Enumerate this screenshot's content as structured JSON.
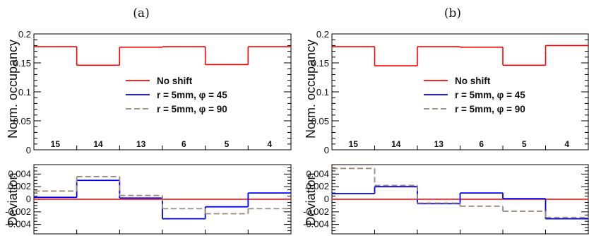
{
  "chart_data": [
    {
      "panel_label": "(a)",
      "type": "line",
      "style": "step",
      "categories": [
        "15",
        "14",
        "13",
        "6",
        "5",
        "4"
      ],
      "occupancy": {
        "ylabel": "Norm. occupancy",
        "ylim": [
          0,
          0.2
        ],
        "yticks": [
          0,
          0.05,
          0.1,
          0.15,
          0.2
        ],
        "ytick_labels": [
          "0",
          "0.05",
          "0.1",
          "0.15",
          "0.2"
        ],
        "series": [
          {
            "name": "No shift",
            "color": "#ff0000",
            "dash": "solid",
            "values": [
              0.178,
              0.146,
              0.177,
              0.178,
              0.147,
              0.178
            ]
          }
        ]
      },
      "deviation": {
        "ylabel": "Deviation",
        "ylim": [
          -0.0055,
          0.0055
        ],
        "yticks": [
          -0.004,
          -0.002,
          0,
          0.002,
          0.004
        ],
        "ytick_labels": [
          "-0.004",
          "-0.002",
          "0",
          "0.002",
          "0.004"
        ],
        "reference_line": 0,
        "series": [
          {
            "name": "r = 5mm, φ = 45",
            "color": "#0000ee",
            "dash": "solid",
            "values": [
              0.0003,
              0.003,
              0.0002,
              -0.0031,
              -0.0012,
              0.001
            ]
          },
          {
            "name": "r = 5mm, φ = 90",
            "color": "#9a8878",
            "dash": "dashed",
            "values": [
              0.0013,
              0.0036,
              0.0006,
              -0.0015,
              -0.0023,
              -0.0015
            ]
          }
        ]
      },
      "legend": {
        "placement": "center",
        "entries": [
          {
            "label": "No shift",
            "color": "#ff0000",
            "dash": "solid"
          },
          {
            "label": "r = 5mm, φ = 45",
            "color": "#0000ee",
            "dash": "solid"
          },
          {
            "label": "r = 5mm, φ = 90",
            "color": "#9a8878",
            "dash": "dashed"
          }
        ]
      }
    },
    {
      "panel_label": "(b)",
      "type": "line",
      "style": "step",
      "categories": [
        "15",
        "14",
        "13",
        "6",
        "5",
        "4"
      ],
      "occupancy": {
        "ylabel": "Norm. occupancy",
        "ylim": [
          0,
          0.2
        ],
        "yticks": [
          0,
          0.05,
          0.1,
          0.15,
          0.2
        ],
        "ytick_labels": [
          "0",
          "0.05",
          "0.1",
          "0.15",
          "0.2"
        ],
        "series": [
          {
            "name": "No shift",
            "color": "#ff0000",
            "dash": "solid",
            "values": [
              0.178,
              0.145,
              0.178,
              0.177,
              0.146,
              0.18
            ]
          }
        ]
      },
      "deviation": {
        "ylabel": "Deviation",
        "ylim": [
          -0.0055,
          0.0055
        ],
        "yticks": [
          -0.004,
          -0.002,
          0,
          0.002,
          0.004
        ],
        "ytick_labels": [
          "-0.004",
          "-0.002",
          "0",
          "0.002",
          "0.004"
        ],
        "reference_line": 0,
        "series": [
          {
            "name": "r = 5mm, φ = 45",
            "color": "#0000ee",
            "dash": "solid",
            "values": [
              0.0009,
              0.002,
              -0.0007,
              0.001,
              0.0001,
              -0.0031
            ]
          },
          {
            "name": "r = 5mm, φ = 90",
            "color": "#9a8878",
            "dash": "dashed",
            "values": [
              0.0049,
              0.0022,
              -0.0006,
              -0.0011,
              -0.0019,
              -0.0029
            ]
          }
        ]
      },
      "legend": {
        "placement": "center",
        "entries": [
          {
            "label": "No shift",
            "color": "#ff0000",
            "dash": "solid"
          },
          {
            "label": "r = 5mm, φ = 45",
            "color": "#0000ee",
            "dash": "solid"
          },
          {
            "label": "r = 5mm, φ = 90",
            "color": "#9a8878",
            "dash": "dashed"
          }
        ]
      }
    }
  ]
}
